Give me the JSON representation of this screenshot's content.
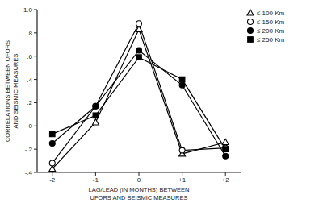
{
  "chart_data": {
    "type": "line",
    "x_label": "LAG/LEAD (IN MONTHS) BETWEEN UFORS AND SEISMIC MEASURES",
    "y_label": "CORRELATIONS BETWEEN UFORS AND SEISMIC MEASURES",
    "x": [
      -2,
      -1,
      0,
      1,
      2
    ],
    "xlim": [
      -2.35,
      2.35
    ],
    "xticks": [
      -2,
      -1,
      0,
      {
        "value": 1,
        "label": "+1"
      },
      {
        "value": 2,
        "label": "+2"
      }
    ],
    "ylim": [
      -0.4,
      1.0
    ],
    "yticks": [
      {
        "value": -0.4,
        "label": "-.4"
      },
      {
        "value": -0.2,
        "label": "-.2"
      },
      0,
      {
        "value": 0.2,
        "label": ".2"
      },
      {
        "value": 0.4,
        "label": ".4"
      },
      {
        "value": 0.6,
        "label": ".6"
      },
      {
        "value": 0.8,
        "label": ".8"
      },
      {
        "value": 1.0,
        "label": "1.0"
      }
    ],
    "grid": false,
    "legend": "top-right",
    "series": [
      {
        "name": "≤ 100 Km",
        "color": "#000000",
        "marker": "triangle-open",
        "values": [
          -0.37,
          0.03,
          0.83,
          -0.24,
          -0.14
        ]
      },
      {
        "name": "≤ 150 Km",
        "color": "#000000",
        "marker": "circle-open",
        "values": [
          -0.32,
          0.17,
          0.88,
          -0.21,
          -0.19
        ]
      },
      {
        "name": "≤ 200 Km",
        "color": "#000000",
        "marker": "circle",
        "values": [
          -0.15,
          0.17,
          0.65,
          0.35,
          -0.26
        ]
      },
      {
        "name": "≤ 250 Km",
        "color": "#000000",
        "marker": "square",
        "values": [
          -0.07,
          0.09,
          0.59,
          0.4,
          -0.2
        ]
      }
    ]
  }
}
